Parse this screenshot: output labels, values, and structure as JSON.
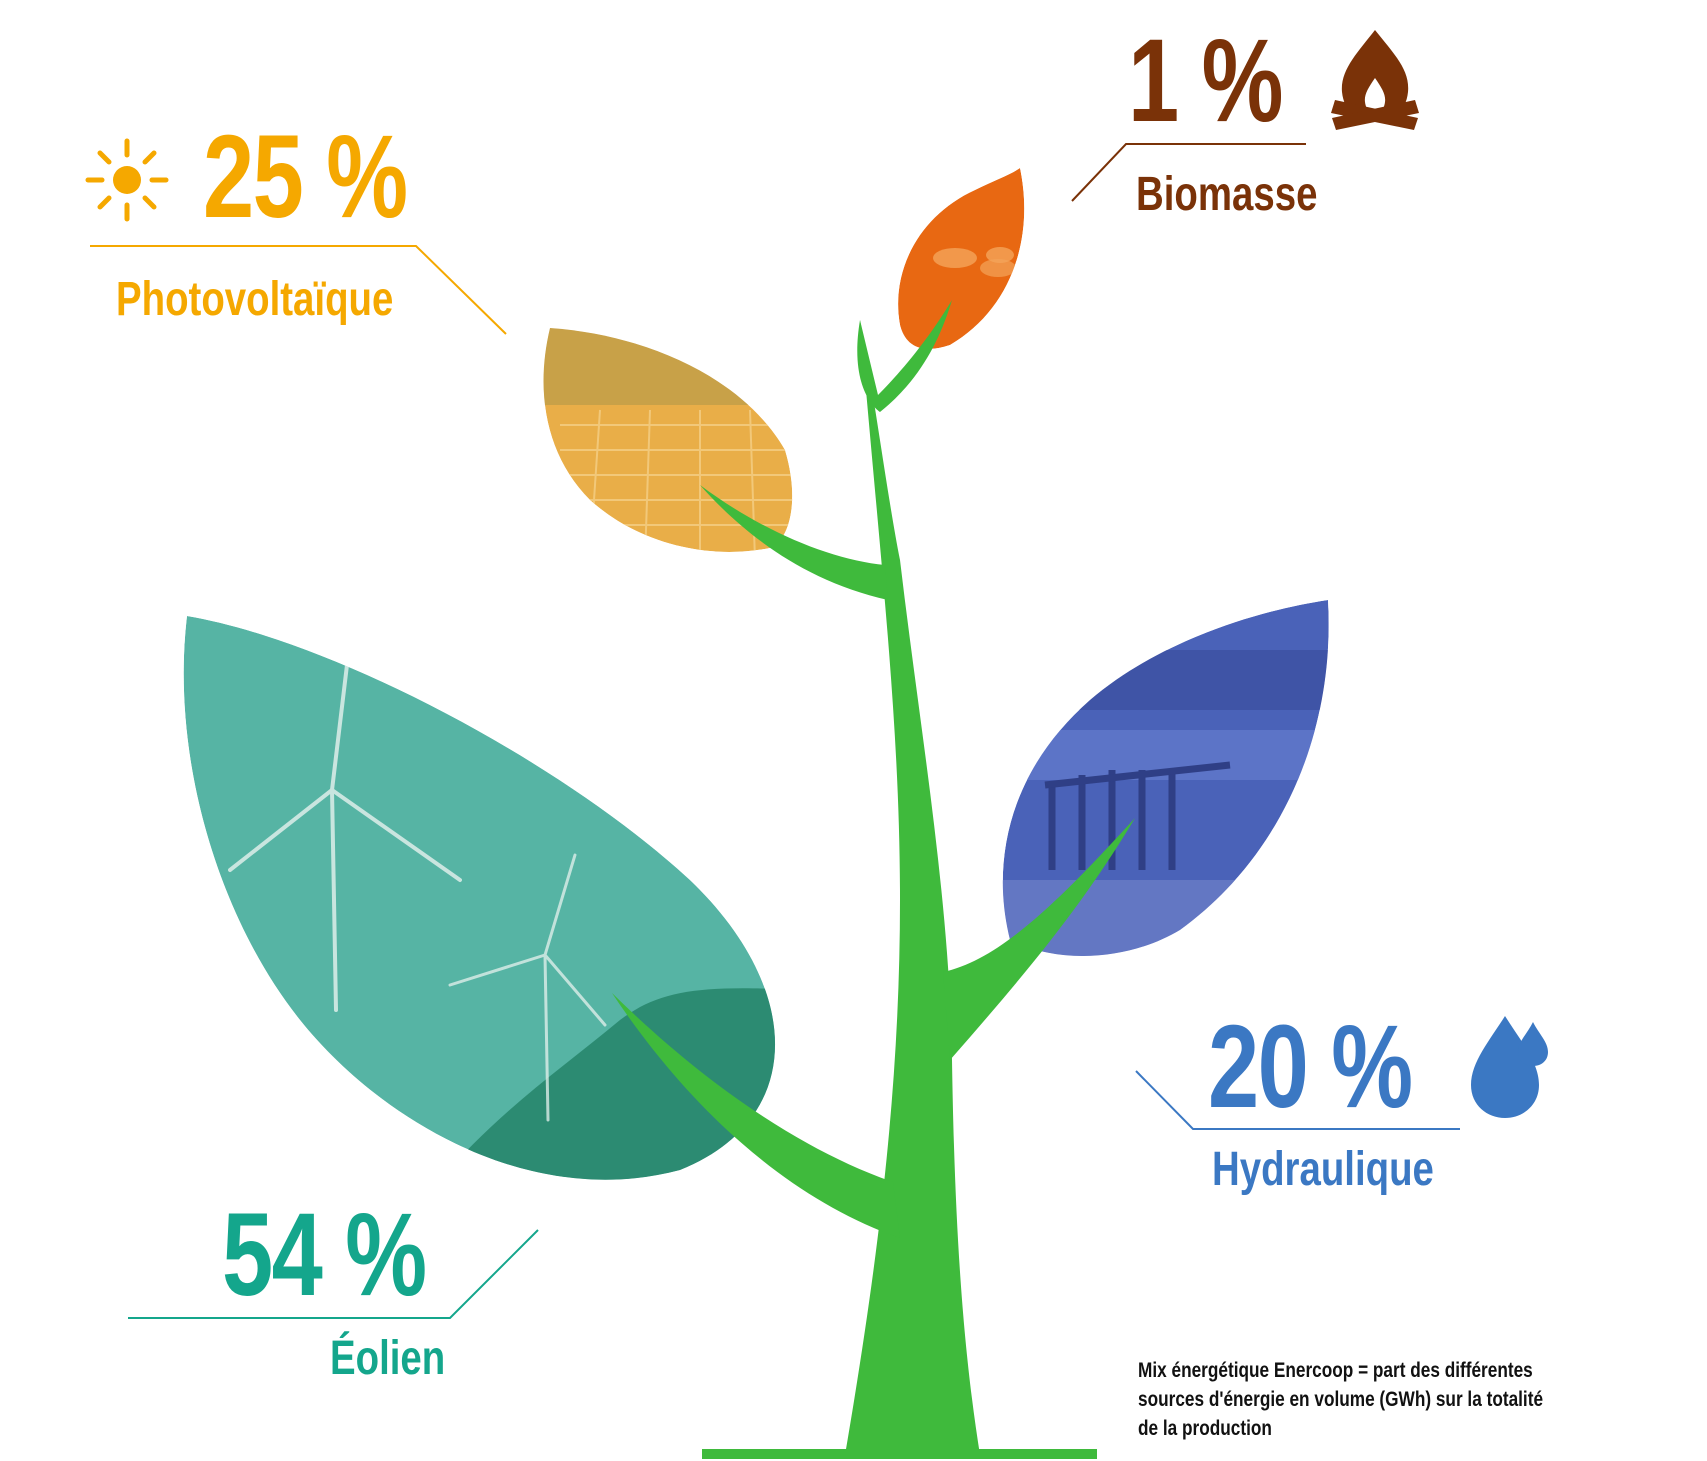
{
  "chart_data": {
    "type": "pie",
    "style": "tree-infographic",
    "slices": [
      {
        "label": "Éolien",
        "value_text": "54 %",
        "value": 54,
        "color": "#14a68c",
        "icon": ""
      },
      {
        "label": "Photovoltaïque",
        "value_text": "25 %",
        "value": 25,
        "color": "#f5a800",
        "icon": "sun-icon"
      },
      {
        "label": "Hydraulique",
        "value_text": "20 %",
        "value": 20,
        "color": "#3b78c3",
        "icon": "water-drop-icon"
      },
      {
        "label": "Biomasse",
        "value_text": "1 %",
        "value": 1,
        "color": "#7a3208",
        "icon": "campfire-icon"
      }
    ],
    "note": "Mix énergétique Enercoop = part des différentes sources d'énergie en volume (GWh) sur la totalité de la production"
  },
  "colors": {
    "trunk": "#3fba3c",
    "leaf_wind": "#56b4a4",
    "leaf_solar": "#e9ae48",
    "leaf_hydro": "#4a62b8",
    "leaf_biomass": "#e86812"
  }
}
